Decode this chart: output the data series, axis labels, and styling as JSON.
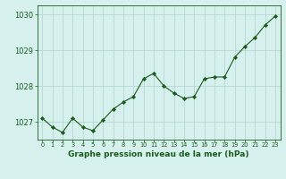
{
  "x": [
    0,
    1,
    2,
    3,
    4,
    5,
    6,
    7,
    8,
    9,
    10,
    11,
    12,
    13,
    14,
    15,
    16,
    17,
    18,
    19,
    20,
    21,
    22,
    23
  ],
  "y": [
    1027.1,
    1026.85,
    1026.7,
    1027.1,
    1026.85,
    1026.75,
    1027.05,
    1027.35,
    1027.55,
    1027.7,
    1028.2,
    1028.35,
    1028.0,
    1027.8,
    1027.65,
    1027.7,
    1028.2,
    1028.25,
    1028.25,
    1028.8,
    1029.1,
    1029.35,
    1029.7,
    1029.95
  ],
  "line_color": "#1a5c1a",
  "marker_color": "#1a5c1a",
  "bg_color": "#d6f0ee",
  "grid_color": "#b8d8d4",
  "tick_color": "#1a5c1a",
  "xlabel": "Graphe pression niveau de la mer (hPa)",
  "xlabel_color": "#1a5c1a",
  "ylim": [
    1026.5,
    1030.25
  ],
  "yticks": [
    1027,
    1028,
    1029,
    1030
  ],
  "xtick_labels": [
    "0",
    "1",
    "2",
    "3",
    "4",
    "5",
    "6",
    "7",
    "8",
    "9",
    "10",
    "11",
    "12",
    "13",
    "14",
    "15",
    "16",
    "17",
    "18",
    "19",
    "20",
    "21",
    "22",
    "23"
  ]
}
